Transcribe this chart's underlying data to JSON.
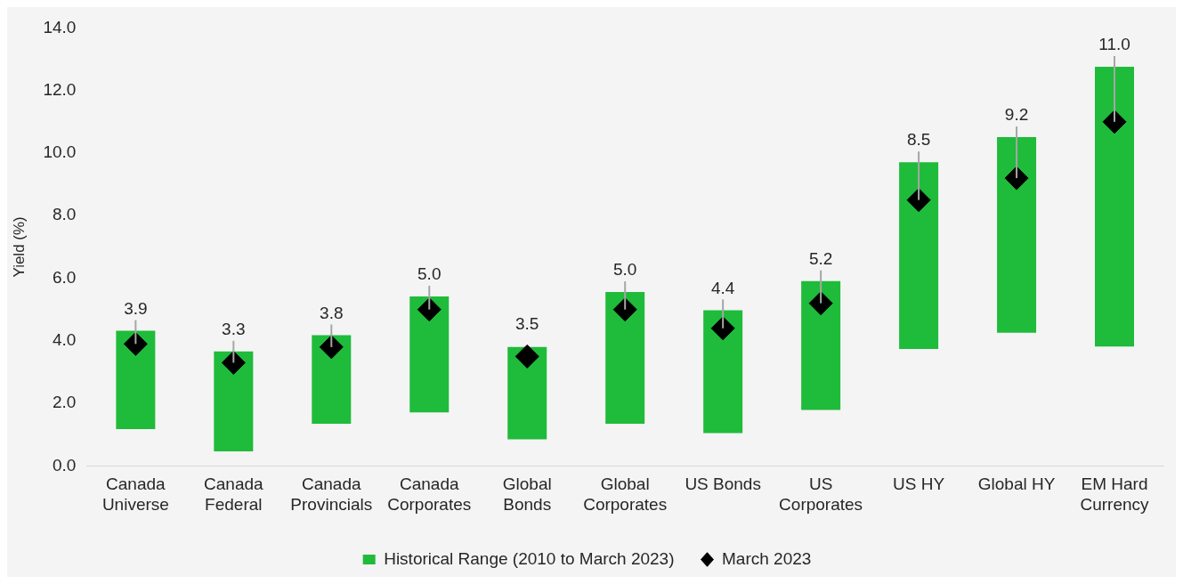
{
  "chart_data": {
    "type": "bar",
    "ylabel": "Yield (%)",
    "categories": [
      "Canada Universe",
      "Canada Federal",
      "Canada Provincials",
      "Canada Corporates",
      "Global Bonds",
      "Global Corporates",
      "US Bonds",
      "US Corporates",
      "US HY",
      "Global HY",
      "EM Hard Currency"
    ],
    "series": [
      {
        "name": "Historical Range (2010 to March 2023)",
        "color": "#1fbb3b",
        "base": [
          1.18,
          0.47,
          1.35,
          1.71,
          0.85,
          1.35,
          1.05,
          1.79,
          3.74,
          4.26,
          3.82
        ],
        "values": [
          3.14,
          3.19,
          2.83,
          3.71,
          2.95,
          4.21,
          3.93,
          4.12,
          5.97,
          6.25,
          8.94
        ]
      },
      {
        "name": "March 2023",
        "type": "scatter",
        "color": "#000000",
        "marker": "diamond",
        "x": [
          "Canada Universe",
          "Canada Federal",
          "Canada Provincials",
          "Canada Corporates",
          "Global Bonds",
          "Global Corporates",
          "US Bonds",
          "US Corporates",
          "US HY",
          "Global HY",
          "EM Hard Currency"
        ],
        "values": [
          3.9,
          3.3,
          3.8,
          5.0,
          3.5,
          5.0,
          4.4,
          5.2,
          8.5,
          9.2,
          11.0
        ],
        "value_labels": [
          "3.9",
          "3.3",
          "3.8",
          "5.0",
          "3.5",
          "5.0",
          "4.4",
          "5.2",
          "8.5",
          "9.2",
          "11.0"
        ]
      }
    ],
    "ylim": [
      0,
      14
    ],
    "yticks": [
      {
        "value": 0,
        "label": "0.0"
      },
      {
        "value": 2,
        "label": "2.0"
      },
      {
        "value": 4,
        "label": "4.0"
      },
      {
        "value": 6,
        "label": "6.0"
      },
      {
        "value": 8,
        "label": "8.0"
      },
      {
        "value": 10,
        "label": "10.0"
      },
      {
        "value": 12,
        "label": "12.0"
      },
      {
        "value": 14,
        "label": "14.0"
      }
    ],
    "grid": false,
    "legend": "bottom"
  }
}
